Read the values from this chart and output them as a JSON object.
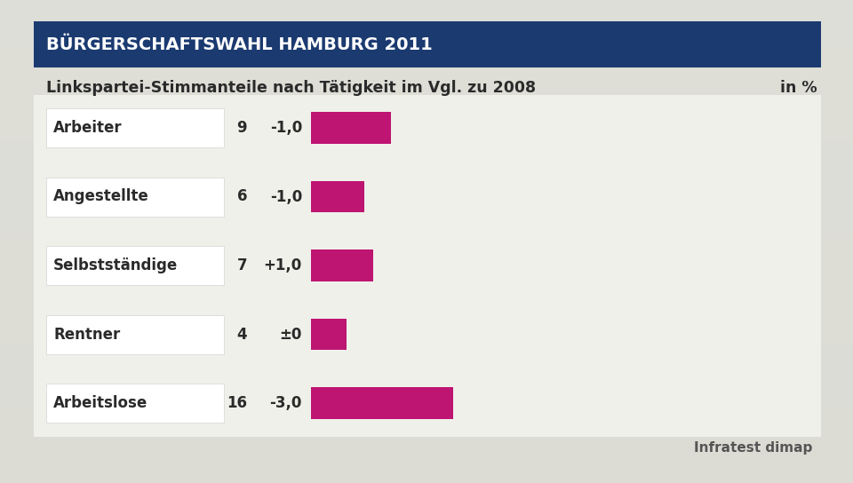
{
  "title_banner": "BÜRGERSCHAFTSWAHL HAMBURG 2011",
  "subtitle": "Linkspartei-Stimmanteile nach Tätigkeit im Vgl. zu 2008",
  "subtitle_right": "in %",
  "source": "Infratest dimap",
  "categories": [
    "Arbeiter",
    "Angestellte",
    "Selbstständige",
    "Rentner",
    "Arbeitslose"
  ],
  "values_pct": [
    9,
    6,
    7,
    4,
    16
  ],
  "change_labels": [
    "-1,0",
    "-1,0",
    "+1,0",
    "±0",
    "-3,0"
  ],
  "bar_color": "#be1472",
  "bg_color": "#d8d8d0",
  "banner_color": "#1b3a70",
  "banner_text_color": "#ffffff",
  "white_area_color": "#f0f0ea",
  "text_color": "#2a2a2a",
  "source_color": "#555555",
  "title_fontsize": 14,
  "subtitle_fontsize": 12.5,
  "label_fontsize": 12,
  "value_fontsize": 12,
  "source_fontsize": 11
}
